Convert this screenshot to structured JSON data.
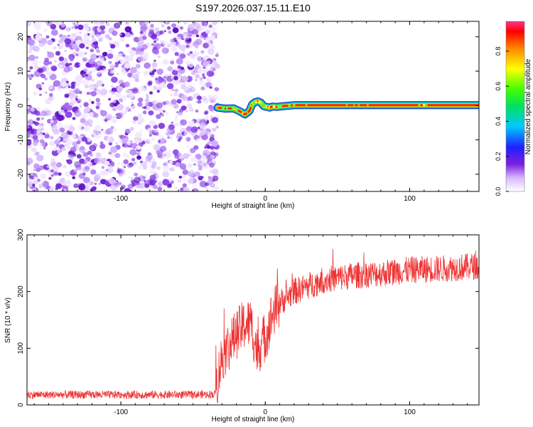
{
  "title": "S197.2026.037.15.11.E10",
  "chart_data": [
    {
      "type": "heatmap",
      "xlabel": "Height of straight line (km)",
      "ylabel": "Frequency (Hz)",
      "xlim": [
        -165,
        148
      ],
      "ylim": [
        -25,
        24.5
      ],
      "xticks": [
        -100,
        0,
        100
      ],
      "xtick_labels": [
        "-100",
        "0",
        "100"
      ],
      "yticks": [
        -20,
        -10,
        0,
        10,
        20
      ],
      "ytick_labels": [
        "-20",
        "-10",
        "0",
        "10",
        "20"
      ],
      "noise_region_x": [
        -165,
        -33
      ],
      "track": {
        "description": "narrow band of high normalized amplitude near 0 Hz",
        "x": [
          -33,
          -28,
          -22,
          -18,
          -14,
          -11,
          -9,
          -7,
          -5,
          -3,
          -1,
          1,
          3,
          5,
          8,
          12,
          20,
          40,
          80,
          148
        ],
        "freq": [
          -0.6,
          -0.9,
          -0.8,
          -1.6,
          -2.6,
          -1.6,
          0.4,
          1.0,
          1.2,
          0.8,
          -0.2,
          -0.4,
          -0.6,
          -0.3,
          -0.4,
          -0.2,
          0.1,
          0.1,
          0.1,
          0.1
        ]
      },
      "colorbar": {
        "label": "Normalized spectral amplitude",
        "ticks": [
          0.0,
          0.2,
          0.4,
          0.6,
          0.8
        ],
        "tick_labels": [
          "0.0",
          "0.2",
          "0.4",
          "0.6",
          "0.8"
        ],
        "range": [
          0,
          0.97
        ]
      }
    },
    {
      "type": "line",
      "xlabel": "Height of straight line (km)",
      "ylabel": "SNR (10 * v/v)",
      "xlim": [
        -165,
        148
      ],
      "ylim": [
        0,
        300
      ],
      "xticks": [
        -100,
        0,
        100
      ],
      "xtick_labels": [
        "-100",
        "0",
        "100"
      ],
      "yticks": [
        0,
        100,
        200,
        300
      ],
      "ytick_labels": [
        "0",
        "100",
        "200",
        "300"
      ],
      "color": "#ee3333",
      "series": [
        {
          "name": "SNR",
          "x": [
            -165,
            -140,
            -110,
            -80,
            -50,
            -35,
            -30,
            -25,
            -20,
            -15,
            -10,
            -8,
            -5,
            -3,
            0,
            5,
            10,
            20,
            30,
            40,
            60,
            80,
            100,
            120,
            148
          ],
          "values": [
            18,
            18,
            18,
            18,
            18,
            19,
            85,
            105,
            125,
            140,
            145,
            120,
            90,
            110,
            120,
            160,
            180,
            200,
            210,
            220,
            228,
            232,
            238,
            240,
            245
          ]
        }
      ]
    }
  ]
}
